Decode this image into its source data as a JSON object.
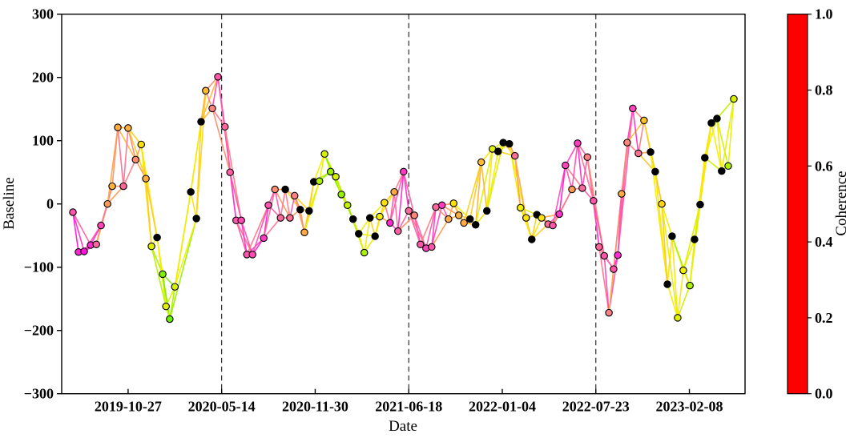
{
  "chart_data": {
    "type": "scatter",
    "description": "Interferogram network plot: perpendicular baseline vs acquisition date; acquisitions (dots) connected by pair lines colored by coherence; black dots are uncolored/excluded acquisitions",
    "title": "",
    "xlabel": "Date",
    "ylabel": "Baseline",
    "ylim": [
      -300,
      300
    ],
    "ytick_values": [
      300,
      200,
      100,
      0,
      -100,
      -200,
      -300
    ],
    "ytick_labels": [
      "300",
      "200",
      "100",
      "0",
      "−100",
      "−200",
      "−300"
    ],
    "x_range": [
      "2019-06-07",
      "2023-06-07"
    ],
    "xticks": [
      "2019-10-27",
      "2020-05-14",
      "2020-11-30",
      "2021-06-18",
      "2022-01-04",
      "2022-07-23",
      "2023-02-08"
    ],
    "dashed_vlines": [
      "2020-05-14",
      "2021-06-18",
      "2022-07-23"
    ],
    "grid": false,
    "legend": "none",
    "colorbar": {
      "label": "Coherence",
      "range": [
        0,
        1
      ],
      "tick_values": [
        0.0,
        0.2,
        0.4,
        0.6,
        0.8,
        1.0
      ],
      "tick_labels": [
        "0.0",
        "0.2",
        "0.4",
        "0.6",
        "0.8",
        "1.0"
      ],
      "stops": [
        [
          0.0,
          "#ff0000"
        ],
        [
          0.05,
          "#ff0032"
        ],
        [
          0.1,
          "#ff0064"
        ],
        [
          0.15,
          "#ff00aa"
        ],
        [
          0.2,
          "#ff00e6"
        ],
        [
          0.25,
          "#ff2ad2"
        ],
        [
          0.3,
          "#ff55ab"
        ],
        [
          0.35,
          "#ff8086"
        ],
        [
          0.4,
          "#ff9b55"
        ],
        [
          0.45,
          "#ffc128"
        ],
        [
          0.5,
          "#ffe300"
        ],
        [
          0.55,
          "#f2ef00"
        ],
        [
          0.6,
          "#c3f200"
        ],
        [
          0.65,
          "#8cf000"
        ],
        [
          0.7,
          "#55ec00"
        ],
        [
          0.75,
          "#1fe400"
        ],
        [
          0.8,
          "#00d01e"
        ],
        [
          0.85,
          "#00a968"
        ],
        [
          0.9,
          "#0078a8"
        ],
        [
          0.95,
          "#0038e0"
        ],
        [
          1.0,
          "#0000ff"
        ]
      ]
    },
    "marker_edge_color": "#000000",
    "excluded_point_color": "#000000",
    "nodes_format": [
      "date",
      "baseline",
      "coherence_estimate",
      "black_fill"
    ],
    "nodes": [
      [
        "2019-07-01",
        -13,
        0.3,
        0
      ],
      [
        "2019-07-13",
        -76,
        0.24,
        0
      ],
      [
        "2019-07-25",
        -75,
        0.22,
        0
      ],
      [
        "2019-08-08",
        -65,
        0.25,
        0
      ],
      [
        "2019-08-20",
        -64,
        0.32,
        0
      ],
      [
        "2019-08-30",
        -34,
        0.28,
        0
      ],
      [
        "2019-09-13",
        0,
        0.4,
        0
      ],
      [
        "2019-09-23",
        28,
        0.43,
        0
      ],
      [
        "2019-10-05",
        121,
        0.42,
        0
      ],
      [
        "2019-10-17",
        28,
        0.32,
        0
      ],
      [
        "2019-10-27",
        120,
        0.43,
        0
      ],
      [
        "2019-11-12",
        70,
        0.37,
        0
      ],
      [
        "2019-11-24",
        94,
        0.5,
        0
      ],
      [
        "2019-12-04",
        40,
        0.42,
        0
      ],
      [
        "2019-12-16",
        -67,
        0.57,
        0
      ],
      [
        "2019-12-28",
        -53,
        0.5,
        1
      ],
      [
        "2020-01-09",
        -111,
        0.66,
        0
      ],
      [
        "2020-01-16",
        -162,
        0.57,
        0
      ],
      [
        "2020-01-24",
        -182,
        0.68,
        0
      ],
      [
        "2020-02-04",
        -131,
        0.58,
        0
      ],
      [
        "2020-03-09",
        19,
        0.55,
        1
      ],
      [
        "2020-03-21",
        -23,
        0.52,
        1
      ],
      [
        "2020-03-31",
        130,
        0.5,
        1
      ],
      [
        "2020-04-10",
        179,
        0.44,
        0
      ],
      [
        "2020-04-24",
        151,
        0.36,
        0
      ],
      [
        "2020-05-06",
        201,
        0.3,
        0
      ],
      [
        "2020-05-21",
        122,
        0.32,
        0
      ],
      [
        "2020-06-01",
        50,
        0.31,
        0
      ],
      [
        "2020-06-14",
        -26,
        0.3,
        0
      ],
      [
        "2020-06-25",
        -26,
        0.29,
        0
      ],
      [
        "2020-07-07",
        -80,
        0.3,
        0
      ],
      [
        "2020-07-19",
        -80,
        0.29,
        0
      ],
      [
        "2020-08-12",
        -54,
        0.27,
        0
      ],
      [
        "2020-08-22",
        -2,
        0.3,
        0
      ],
      [
        "2020-09-05",
        23,
        0.37,
        0
      ],
      [
        "2020-09-17",
        -22,
        0.32,
        0
      ],
      [
        "2020-09-27",
        23,
        0.45,
        1
      ],
      [
        "2020-10-07",
        -22,
        0.33,
        0
      ],
      [
        "2020-10-17",
        13,
        0.35,
        0
      ],
      [
        "2020-10-29",
        -9,
        0.45,
        1
      ],
      [
        "2020-11-07",
        -45,
        0.42,
        0
      ],
      [
        "2020-11-17",
        -11,
        0.5,
        1
      ],
      [
        "2020-11-27",
        35,
        0.52,
        1
      ],
      [
        "2020-12-09",
        36,
        0.62,
        0
      ],
      [
        "2020-12-20",
        79,
        0.58,
        0
      ],
      [
        "2021-01-02",
        51,
        0.64,
        0
      ],
      [
        "2021-01-13",
        43,
        0.58,
        0
      ],
      [
        "2021-01-25",
        15,
        0.64,
        0
      ],
      [
        "2021-02-07",
        -2,
        0.6,
        0
      ],
      [
        "2021-02-19",
        -24,
        0.55,
        1
      ],
      [
        "2021-03-03",
        -47,
        0.55,
        1
      ],
      [
        "2021-03-15",
        -77,
        0.62,
        0
      ],
      [
        "2021-03-27",
        -22,
        0.52,
        1
      ],
      [
        "2021-04-07",
        -51,
        0.5,
        1
      ],
      [
        "2021-04-17",
        -20,
        0.55,
        0
      ],
      [
        "2021-04-27",
        2,
        0.5,
        0
      ],
      [
        "2021-05-09",
        -30,
        0.25,
        0
      ],
      [
        "2021-05-18",
        19,
        0.42,
        0
      ],
      [
        "2021-05-26",
        -43,
        0.31,
        0
      ],
      [
        "2021-06-07",
        51,
        0.27,
        0
      ],
      [
        "2021-06-18",
        -11,
        0.32,
        0
      ],
      [
        "2021-06-30",
        -18,
        0.36,
        0
      ],
      [
        "2021-07-13",
        -64,
        0.3,
        0
      ],
      [
        "2021-07-25",
        -70,
        0.28,
        0
      ],
      [
        "2021-08-06",
        -68,
        0.3,
        0
      ],
      [
        "2021-08-15",
        -5,
        0.32,
        0
      ],
      [
        "2021-08-28",
        -2,
        0.27,
        0
      ],
      [
        "2021-09-11",
        -24,
        0.42,
        0
      ],
      [
        "2021-09-22",
        1,
        0.5,
        0
      ],
      [
        "2021-10-03",
        -18,
        0.43,
        0
      ],
      [
        "2021-10-14",
        -30,
        0.42,
        0
      ],
      [
        "2021-10-27",
        -24,
        0.48,
        1
      ],
      [
        "2021-11-08",
        -33,
        0.5,
        1
      ],
      [
        "2021-11-20",
        66,
        0.44,
        0
      ],
      [
        "2021-12-02",
        -11,
        0.52,
        1
      ],
      [
        "2021-12-14",
        87,
        0.57,
        0
      ],
      [
        "2021-12-26",
        83,
        0.55,
        1
      ],
      [
        "2022-01-06",
        97,
        0.55,
        1
      ],
      [
        "2022-01-19",
        95,
        0.52,
        1
      ],
      [
        "2022-01-31",
        76,
        0.33,
        0
      ],
      [
        "2022-02-12",
        -6,
        0.55,
        0
      ],
      [
        "2022-02-24",
        -22,
        0.5,
        0
      ],
      [
        "2022-03-08",
        -56,
        0.52,
        1
      ],
      [
        "2022-03-19",
        -17,
        0.5,
        1
      ],
      [
        "2022-03-29",
        -22,
        0.51,
        0
      ],
      [
        "2022-04-12",
        -32,
        0.33,
        0
      ],
      [
        "2022-04-22",
        -34,
        0.3,
        0
      ],
      [
        "2022-05-06",
        -16,
        0.26,
        0
      ],
      [
        "2022-05-19",
        61,
        0.28,
        0
      ],
      [
        "2022-06-02",
        23,
        0.4,
        0
      ],
      [
        "2022-06-14",
        96,
        0.27,
        0
      ],
      [
        "2022-06-24",
        25,
        0.32,
        0
      ],
      [
        "2022-07-05",
        74,
        0.35,
        0
      ],
      [
        "2022-07-18",
        5,
        0.3,
        0
      ],
      [
        "2022-07-30",
        -68,
        0.32,
        0
      ],
      [
        "2022-08-10",
        -82,
        0.3,
        0
      ],
      [
        "2022-08-20",
        -172,
        0.35,
        0
      ],
      [
        "2022-08-30",
        -103,
        0.3,
        0
      ],
      [
        "2022-09-08",
        -81,
        0.25,
        0
      ],
      [
        "2022-09-16",
        16,
        0.42,
        0
      ],
      [
        "2022-09-28",
        97,
        0.36,
        0
      ],
      [
        "2022-10-10",
        151,
        0.28,
        0
      ],
      [
        "2022-10-22",
        80,
        0.33,
        0
      ],
      [
        "2022-11-03",
        132,
        0.45,
        0
      ],
      [
        "2022-11-17",
        82,
        0.48,
        1
      ],
      [
        "2022-11-27",
        51,
        0.5,
        1
      ],
      [
        "2022-12-11",
        0,
        0.48,
        0
      ],
      [
        "2022-12-23",
        -127,
        0.52,
        1
      ],
      [
        "2023-01-02",
        -51,
        0.55,
        1
      ],
      [
        "2023-01-14",
        -180,
        0.57,
        0
      ],
      [
        "2023-01-26",
        -105,
        0.55,
        0
      ],
      [
        "2023-02-09",
        -129,
        0.62,
        0
      ],
      [
        "2023-02-19",
        -56,
        0.55,
        1
      ],
      [
        "2023-03-03",
        -1,
        0.52,
        1
      ],
      [
        "2023-03-13",
        73,
        0.55,
        1
      ],
      [
        "2023-03-27",
        128,
        0.53,
        1
      ],
      [
        "2023-04-08",
        135,
        0.55,
        1
      ],
      [
        "2023-04-18",
        52,
        0.55,
        1
      ],
      [
        "2023-05-02",
        60,
        0.62,
        0
      ],
      [
        "2023-05-14",
        166,
        0.58,
        0
      ]
    ],
    "edge_rule": {
      "gaps": [
        1,
        2
      ],
      "extra_gap": 3,
      "extra_every": 2,
      "coherence": "mean of endpoint coherence_estimate with small deterministic jitter"
    }
  }
}
